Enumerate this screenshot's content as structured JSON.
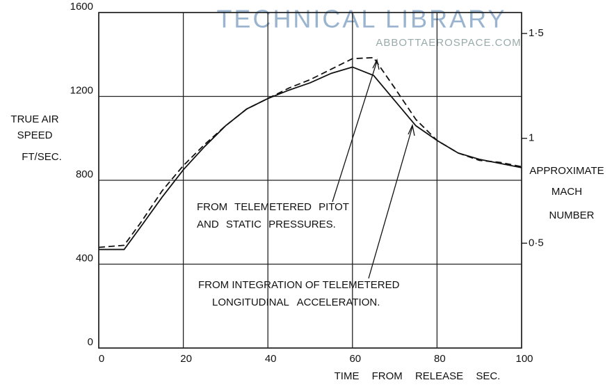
{
  "chart_data": {
    "type": "line",
    "watermark": [
      "TECHNICAL LIBRARY",
      "ABBOTTAEROSPACE.COM"
    ],
    "ylabel": [
      "TRUE AIR",
      "SPEED",
      "FT/SEC."
    ],
    "y2label": [
      "APPROXIMATE",
      "MACH",
      "NUMBER"
    ],
    "xlabel": "TIME FROM RELEASE SEC.",
    "annotations": [
      {
        "lines": [
          "FROM TELEMETERED PITOT",
          "AND STATIC PRESSURES."
        ]
      },
      {
        "lines": [
          "FROM INTEGRATION OF TELEMETERED",
          "LONGITUDINAL ACCELERATION."
        ]
      }
    ],
    "x": [
      0,
      6,
      10,
      15,
      20,
      25,
      30,
      35,
      40,
      45,
      50,
      55,
      60,
      65,
      70,
      75,
      80,
      85,
      90,
      95,
      100
    ],
    "series": [
      {
        "style": "solid",
        "color": "#111111",
        "values": [
          470,
          470,
          580,
          720,
          850,
          960,
          1060,
          1140,
          1190,
          1230,
          1265,
          1310,
          1340,
          1300,
          1180,
          1060,
          990,
          930,
          900,
          880,
          860
        ]
      },
      {
        "style": "dashed",
        "color": "#111111",
        "values": [
          480,
          490,
          600,
          750,
          870,
          970,
          1060,
          1140,
          1190,
          1240,
          1280,
          1330,
          1380,
          1385,
          1240,
          1090,
          990,
          930,
          895,
          885,
          865
        ]
      }
    ],
    "xlim": [
      0,
      100
    ],
    "xticks": [
      0,
      20,
      40,
      60,
      80,
      100
    ],
    "ylim": [
      0,
      1600
    ],
    "yticks": [
      0,
      400,
      800,
      1200,
      1600
    ],
    "y2lim": [
      0,
      1.6
    ],
    "y2ticks": [
      {
        "value": 0.5,
        "label": "0·5"
      },
      1,
      {
        "value": 1.5,
        "label": "1·5"
      }
    ],
    "grid": true
  }
}
